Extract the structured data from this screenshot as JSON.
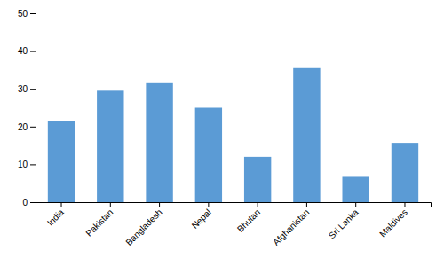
{
  "chart_data": {
    "type": "bar",
    "categories": [
      "India",
      "Pakistan",
      "Bangladesh",
      "Nepal",
      "Bhutan",
      "Afghanistan",
      "Sri Lanka",
      "Maldives"
    ],
    "values": [
      21.5,
      29.5,
      31.5,
      25.0,
      12.0,
      35.5,
      6.7,
      15.7
    ],
    "color": "#5B9BD5",
    "ylim": [
      0,
      50
    ],
    "yticks": [
      0,
      10,
      20,
      30,
      40,
      50
    ],
    "grid": false
  }
}
